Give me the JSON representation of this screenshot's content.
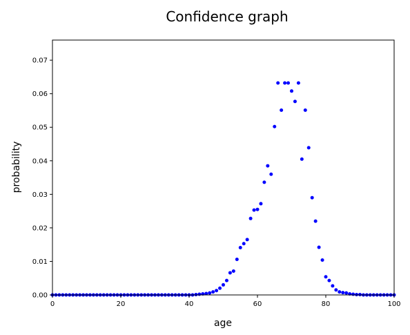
{
  "chart_data": {
    "type": "scatter",
    "title": "Confidence graph",
    "xlabel": "age",
    "ylabel": "probability",
    "xlim": [
      0,
      100
    ],
    "ylim": [
      0,
      0.076
    ],
    "grid": false,
    "legend": "none",
    "marker_color": "#0000ff",
    "xticks": [
      {
        "value": 0,
        "label": "0"
      },
      {
        "value": 20,
        "label": "20"
      },
      {
        "value": 40,
        "label": "40"
      },
      {
        "value": 60,
        "label": "60"
      },
      {
        "value": 80,
        "label": "80"
      },
      {
        "value": 100,
        "label": "100"
      }
    ],
    "yticks": [
      {
        "value": 0,
        "label": "0.00"
      },
      {
        "value": 0.01,
        "label": "0.01"
      },
      {
        "value": 0.02,
        "label": "0.02"
      },
      {
        "value": 0.03,
        "label": "0.03"
      },
      {
        "value": 0.04,
        "label": "0.04"
      },
      {
        "value": 0.05,
        "label": "0.05"
      },
      {
        "value": 0.06,
        "label": "0.06"
      },
      {
        "value": 0.07,
        "label": "0.07"
      }
    ],
    "series": [
      {
        "x": [
          0,
          1,
          2,
          3,
          4,
          5,
          6,
          7,
          8,
          9,
          10,
          11,
          12,
          13,
          14,
          15,
          16,
          17,
          18,
          19,
          20,
          21,
          22,
          23,
          24,
          25,
          26,
          27,
          28,
          29,
          30,
          31,
          32,
          33,
          34,
          35,
          36,
          37,
          38,
          39,
          40,
          41,
          42,
          43,
          44,
          45,
          46,
          47,
          48,
          49,
          50,
          51,
          52,
          53,
          54,
          55,
          56,
          57,
          58,
          59,
          60,
          61,
          62,
          63,
          64,
          65,
          66,
          67,
          68,
          69,
          70,
          71,
          72,
          73,
          74,
          75,
          76,
          77,
          78,
          79,
          80,
          81,
          82,
          83,
          84,
          85,
          86,
          87,
          88,
          89,
          90,
          91,
          92,
          93,
          94,
          95,
          96,
          97,
          98,
          99,
          100
        ],
        "y": [
          0,
          0,
          0,
          0,
          0,
          0,
          0,
          0,
          0,
          0,
          0,
          0,
          0,
          0,
          0,
          0,
          0,
          0,
          0,
          0,
          0,
          0,
          0,
          0,
          0,
          0,
          0,
          0,
          0,
          0,
          0,
          0,
          0,
          0,
          0,
          0,
          0,
          0,
          0,
          0,
          0,
          0,
          0.0001,
          0.0002,
          0.0003,
          0.0004,
          0.0006,
          0.0009,
          0.0013,
          0.002,
          0.003,
          0.0043,
          0.0066,
          0.0071,
          0.0106,
          0.0141,
          0.0153,
          0.0165,
          0.0228,
          0.0253,
          0.0255,
          0.0272,
          0.0336,
          0.0385,
          0.036,
          0.0502,
          0.0632,
          0.0551,
          0.0632,
          0.0632,
          0.0608,
          0.0577,
          0.0632,
          0.0405,
          0.0551,
          0.0439,
          0.029,
          0.022,
          0.0142,
          0.0104,
          0.0054,
          0.0043,
          0.0027,
          0.0015,
          0.0009,
          0.0007,
          0.0006,
          0.0003,
          0.0002,
          0.0001,
          0.0001,
          0,
          0,
          0,
          0,
          0,
          0,
          0,
          0,
          0,
          0
        ]
      }
    ]
  }
}
